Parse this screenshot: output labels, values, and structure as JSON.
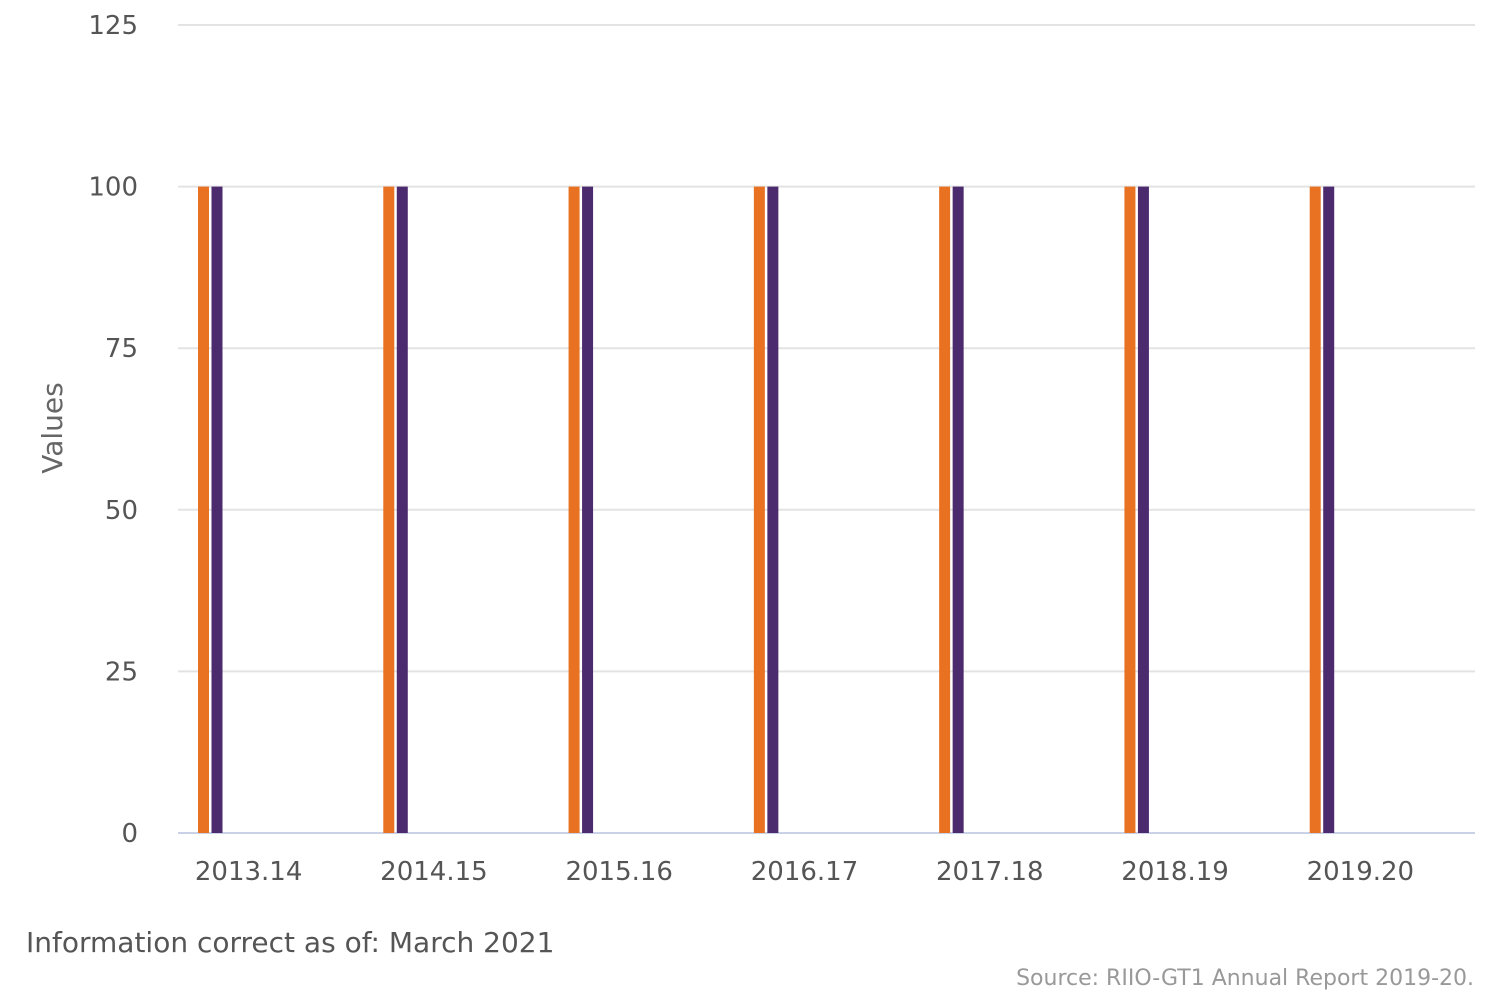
{
  "chart_data": {
    "type": "bar",
    "categories": [
      "2013.14",
      "2014.15",
      "2015.16",
      "2016.17",
      "2017.18",
      "2018.19",
      "2019.20"
    ],
    "series": [
      {
        "color": "#e87122",
        "values": [
          100,
          100,
          100,
          100,
          100,
          100,
          100
        ]
      },
      {
        "color": "#4b2a6e",
        "values": [
          100,
          100,
          100,
          100,
          100,
          100,
          100
        ]
      }
    ],
    "ylabel": "Values",
    "ylim": [
      0,
      125
    ],
    "yticks": [
      0,
      25,
      50,
      75,
      100,
      125
    ],
    "grid": true,
    "legend": "none"
  },
  "footer": {
    "note": "Information correct as of: March 2021",
    "source": "Source: RIIO-GT1 Annual Report 2019-20."
  }
}
